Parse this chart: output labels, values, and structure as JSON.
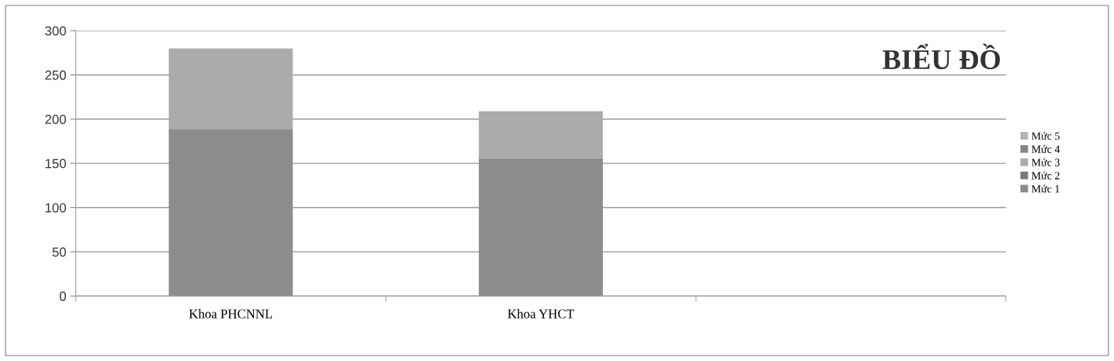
{
  "chart_data": {
    "type": "bar",
    "title": "BIỂU ĐỒ",
    "stacked": true,
    "categories": [
      "Khoa PHCNNL",
      "Khoa YHCT",
      null
    ],
    "series": [
      {
        "name": "Mức 1",
        "color": "#8c8c8c",
        "values": [
          189,
          156,
          null
        ]
      },
      {
        "name": "Mức 2",
        "color": "#7a7a7a",
        "values": [
          null,
          null,
          null
        ]
      },
      {
        "name": "Mức 3",
        "color": "#ababab",
        "values": [
          91,
          53,
          null
        ]
      },
      {
        "name": "Mức 4",
        "color": "#858585",
        "values": [
          null,
          null,
          null
        ]
      },
      {
        "name": "Mức 5",
        "color": "#b3b3b3",
        "values": [
          null,
          null,
          null
        ]
      }
    ],
    "ylim": [
      0,
      300
    ],
    "yticks": [
      0,
      50,
      100,
      150,
      200,
      250,
      300
    ],
    "grid": "y",
    "legend": "right"
  }
}
